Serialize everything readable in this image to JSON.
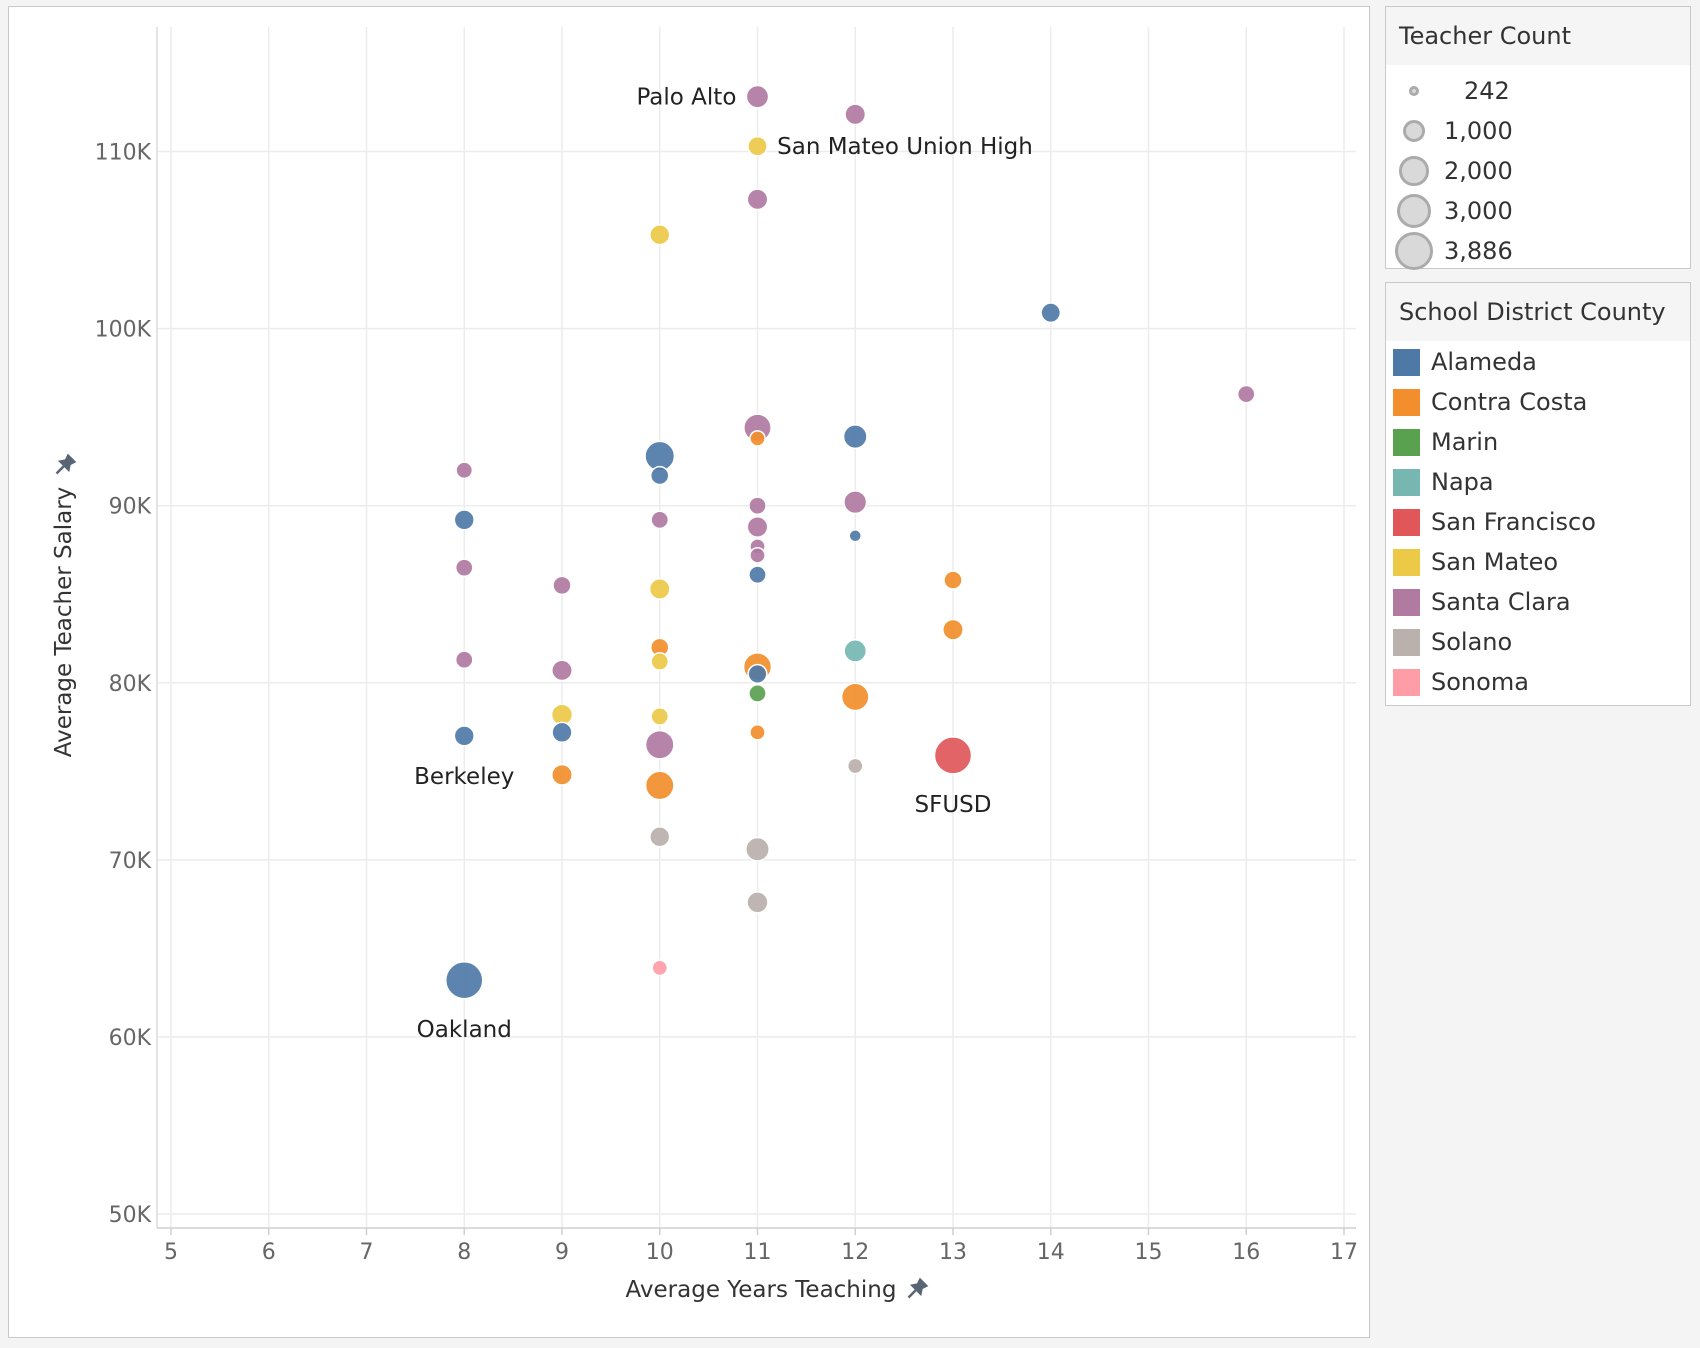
{
  "chart_data": {
    "type": "scatter",
    "xlabel": "Average Years Teaching",
    "ylabel": "Average Teacher Salary",
    "xlim": [
      5,
      17
    ],
    "ylim": [
      50000,
      115000
    ],
    "x_ticks": [
      "5",
      "6",
      "7",
      "8",
      "9",
      "10",
      "11",
      "12",
      "13",
      "14",
      "15",
      "16",
      "17"
    ],
    "y_ticks": [
      {
        "value": 50000,
        "label": "50K"
      },
      {
        "value": 60000,
        "label": "60K"
      },
      {
        "value": 70000,
        "label": "70K"
      },
      {
        "value": 80000,
        "label": "80K"
      },
      {
        "value": 90000,
        "label": "90K"
      },
      {
        "value": 100000,
        "label": "100K"
      },
      {
        "value": 110000,
        "label": "110K"
      }
    ],
    "grid": true,
    "size_legend": {
      "title": "Teacher Count",
      "values": [
        242,
        1000,
        2000,
        3000,
        3886
      ],
      "labels": [
        "242",
        "1,000",
        "2,000",
        "3,000",
        "3,886"
      ]
    },
    "color_legend": {
      "title": "School District County",
      "items": [
        {
          "name": "Alameda",
          "color": "#4e79a7"
        },
        {
          "name": "Contra Costa",
          "color": "#f28e2b"
        },
        {
          "name": "Marin",
          "color": "#59a14f"
        },
        {
          "name": "Napa",
          "color": "#76b7b2"
        },
        {
          "name": "San Francisco",
          "color": "#e15759"
        },
        {
          "name": "San Mateo",
          "color": "#edc948"
        },
        {
          "name": "Santa Clara",
          "color": "#b07aa1"
        },
        {
          "name": "Solano",
          "color": "#bab0ac"
        },
        {
          "name": "Sonoma",
          "color": "#ff9da7"
        }
      ]
    },
    "points": [
      {
        "x": 8,
        "y": 63200,
        "county": "Alameda",
        "size": 3886,
        "label": "Oakland"
      },
      {
        "x": 8,
        "y": 77000,
        "county": "Alameda",
        "size": 600,
        "label": "Berkeley"
      },
      {
        "x": 8,
        "y": 89200,
        "county": "Alameda",
        "size": 600
      },
      {
        "x": 8,
        "y": 92000,
        "county": "Santa Clara",
        "size": 350
      },
      {
        "x": 8,
        "y": 86500,
        "county": "Santa Clara",
        "size": 400
      },
      {
        "x": 8,
        "y": 81300,
        "county": "Santa Clara",
        "size": 400
      },
      {
        "x": 9,
        "y": 85500,
        "county": "Santa Clara",
        "size": 450
      },
      {
        "x": 9,
        "y": 80700,
        "county": "Santa Clara",
        "size": 650
      },
      {
        "x": 9,
        "y": 78200,
        "county": "San Mateo",
        "size": 700
      },
      {
        "x": 9,
        "y": 77200,
        "county": "Alameda",
        "size": 600
      },
      {
        "x": 9,
        "y": 74800,
        "county": "Contra Costa",
        "size": 650
      },
      {
        "x": 10,
        "y": 105300,
        "county": "San Mateo",
        "size": 600
      },
      {
        "x": 10,
        "y": 92800,
        "county": "Alameda",
        "size": 2000
      },
      {
        "x": 10,
        "y": 91700,
        "county": "Alameda",
        "size": 450
      },
      {
        "x": 10,
        "y": 89200,
        "county": "Santa Clara",
        "size": 400
      },
      {
        "x": 10,
        "y": 85300,
        "county": "San Mateo",
        "size": 650
      },
      {
        "x": 10,
        "y": 82000,
        "county": "Contra Costa",
        "size": 450
      },
      {
        "x": 10,
        "y": 81200,
        "county": "San Mateo",
        "size": 400
      },
      {
        "x": 10,
        "y": 78100,
        "county": "San Mateo",
        "size": 400
      },
      {
        "x": 10,
        "y": 76500,
        "county": "Santa Clara",
        "size": 1800
      },
      {
        "x": 10,
        "y": 74200,
        "county": "Contra Costa",
        "size": 1800
      },
      {
        "x": 10,
        "y": 71300,
        "county": "Solano",
        "size": 600
      },
      {
        "x": 10,
        "y": 63900,
        "county": "Sonoma",
        "size": 300
      },
      {
        "x": 11,
        "y": 113100,
        "county": "Santa Clara",
        "size": 850,
        "label": "Palo Alto"
      },
      {
        "x": 11,
        "y": 110300,
        "county": "San Mateo",
        "size": 550,
        "label": "San Mateo Union High"
      },
      {
        "x": 11,
        "y": 107300,
        "county": "Santa Clara",
        "size": 650
      },
      {
        "x": 11,
        "y": 94400,
        "county": "Santa Clara",
        "size": 1600
      },
      {
        "x": 11,
        "y": 93800,
        "county": "Contra Costa",
        "size": 300
      },
      {
        "x": 11,
        "y": 90000,
        "county": "Santa Clara",
        "size": 400
      },
      {
        "x": 11,
        "y": 88800,
        "county": "Santa Clara",
        "size": 650
      },
      {
        "x": 11,
        "y": 87700,
        "county": "Santa Clara",
        "size": 300
      },
      {
        "x": 11,
        "y": 87200,
        "county": "Santa Clara",
        "size": 300
      },
      {
        "x": 11,
        "y": 86100,
        "county": "Alameda",
        "size": 400
      },
      {
        "x": 11,
        "y": 80900,
        "county": "Contra Costa",
        "size": 1700
      },
      {
        "x": 11,
        "y": 80500,
        "county": "Alameda",
        "size": 500
      },
      {
        "x": 11,
        "y": 79400,
        "county": "Marin",
        "size": 400
      },
      {
        "x": 11,
        "y": 77200,
        "county": "Contra Costa",
        "size": 300
      },
      {
        "x": 11,
        "y": 70600,
        "county": "Solano",
        "size": 1000
      },
      {
        "x": 11,
        "y": 67600,
        "county": "Solano",
        "size": 700
      },
      {
        "x": 12,
        "y": 112100,
        "county": "Santa Clara",
        "size": 650
      },
      {
        "x": 12,
        "y": 93900,
        "county": "Alameda",
        "size": 1000
      },
      {
        "x": 12,
        "y": 90200,
        "county": "Santa Clara",
        "size": 900
      },
      {
        "x": 12,
        "y": 88300,
        "county": "Alameda",
        "size": 242
      },
      {
        "x": 12,
        "y": 81800,
        "county": "Napa",
        "size": 850
      },
      {
        "x": 12,
        "y": 79200,
        "county": "Contra Costa",
        "size": 1600
      },
      {
        "x": 12,
        "y": 75300,
        "county": "Solano",
        "size": 300
      },
      {
        "x": 13,
        "y": 85800,
        "county": "Contra Costa",
        "size": 450
      },
      {
        "x": 13,
        "y": 83000,
        "county": "Contra Costa",
        "size": 650
      },
      {
        "x": 13,
        "y": 75900,
        "county": "San Francisco",
        "size": 3886,
        "label": "SFUSD"
      },
      {
        "x": 14,
        "y": 100900,
        "county": "Alameda",
        "size": 550
      },
      {
        "x": 16,
        "y": 96300,
        "county": "Santa Clara",
        "size": 400
      }
    ]
  }
}
